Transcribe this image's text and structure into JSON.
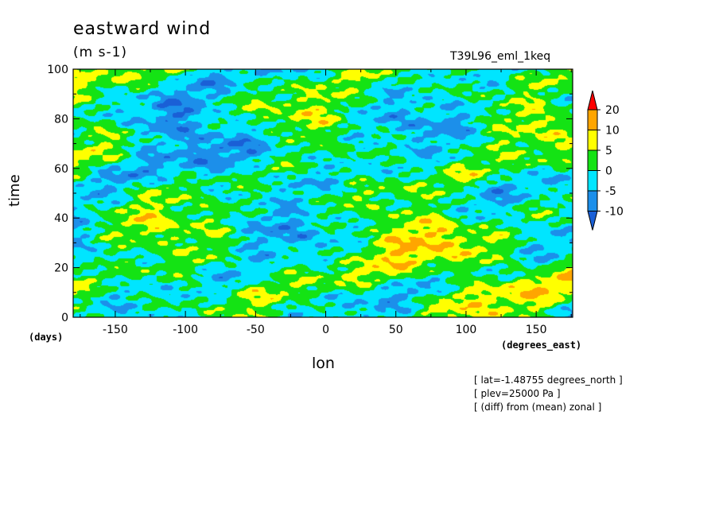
{
  "chart_data": {
    "type": "heatmap",
    "title": "eastward wind",
    "units": "(m s-1)",
    "run_label": "T39L96_eml_1keq",
    "xlabel": "lon",
    "ylabel": "time",
    "x_unit_label": "(degrees_east)",
    "y_unit_label": "(days)",
    "xlim": [
      -180,
      176
    ],
    "ylim": [
      0,
      100
    ],
    "x_ticks": [
      -150,
      -100,
      -50,
      0,
      50,
      100,
      150
    ],
    "y_ticks": [
      0,
      20,
      40,
      60,
      80,
      100
    ],
    "colorbar": {
      "levels": [
        -10,
        -5,
        0,
        5,
        10,
        20
      ],
      "colors": [
        "#1a5fd6",
        "#1c8fea",
        "#00e5ff",
        "#14e314",
        "#ffff00",
        "#ffa500",
        "#ff0000"
      ],
      "extend": "both"
    },
    "notes": [
      "[ lat=-1.48755 degrees_north ]",
      "[ plev=25000 Pa ]",
      "[ (diff) from (mean) zonal ]"
    ]
  }
}
